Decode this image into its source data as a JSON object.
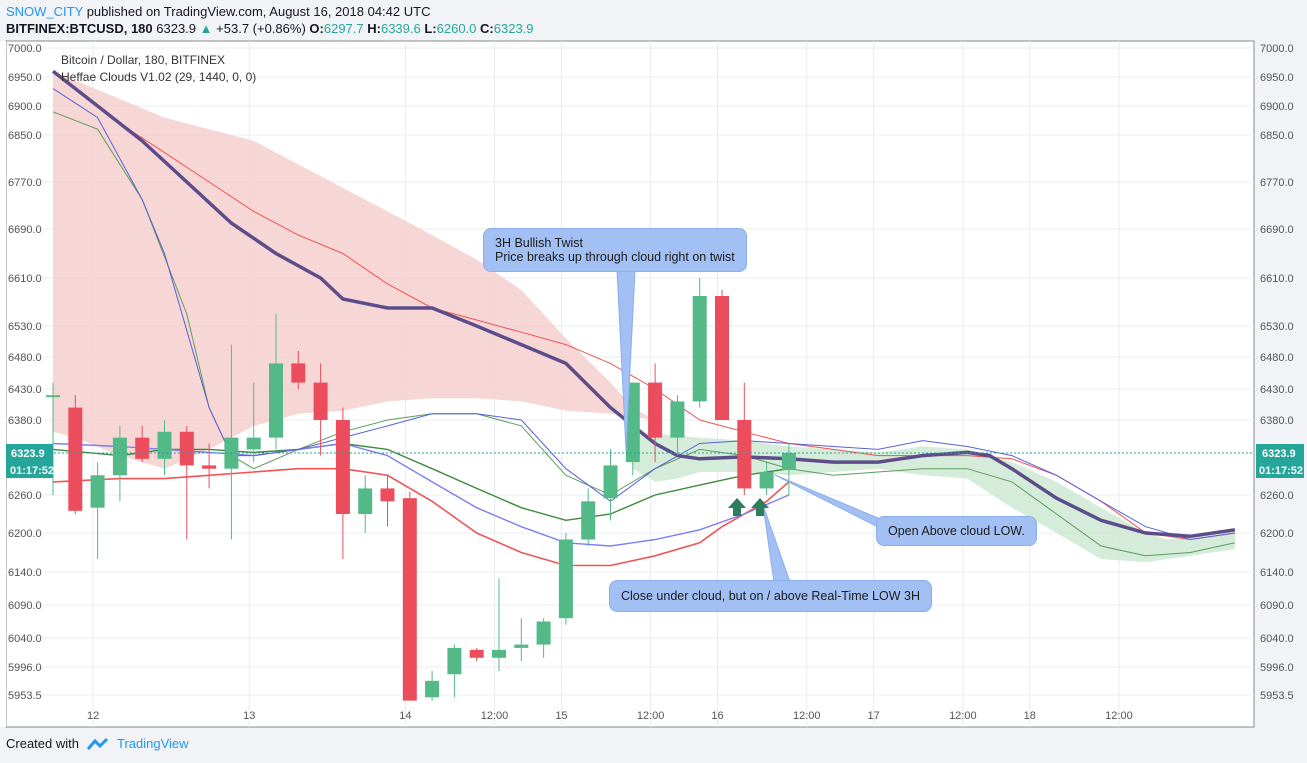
{
  "header": {
    "author": "SNOW_CITY",
    "published": "published on TradingView.com, August 16, 2018 04:42 UTC",
    "symbol": "BITFINEX:BTCUSD, 180",
    "last": "6323.9",
    "change": "+53.7 (+0.86%)",
    "o_label": "O:",
    "o": "6297.7",
    "h_label": "H:",
    "h": "6339.6",
    "l_label": "L:",
    "l": "6260.0",
    "c_label": "C:",
    "c": "6323.9"
  },
  "legend": {
    "line1": "Bitcoin / Dollar, 180, BITFINEX",
    "line2": "Heffae Clouds V1.02 (29, 1440, 0, 0)"
  },
  "footer": {
    "created": "Created with",
    "brand": "TradingView"
  },
  "price_tag": {
    "value": "6323.9",
    "countdown": "01:17:52"
  },
  "annotations": {
    "twist_line1": "3H Bullish Twist",
    "twist_line2": "Price breaks up through cloud right on twist",
    "open_above": "Open Above cloud LOW.",
    "close_under": "Close under cloud, but on / above Real-Time LOW 3H"
  },
  "colors": {
    "up": "#26a69a",
    "down": "#ef5350",
    "bull_candle": "#53b987",
    "bear_candle": "#eb4d5c",
    "cloud_bear": "#f6cfcf",
    "cloud_bull": "#cfe9d3",
    "main_line": "#5c4d8a",
    "callout": "#a2c0f3",
    "arrow": "#2e7d5b"
  },
  "chart_data": {
    "type": "candlestick",
    "y_ticks": [
      7000.0,
      6950.0,
      6900.0,
      6850.0,
      6770.0,
      6690.0,
      6610.0,
      6530.0,
      6480.0,
      6430.0,
      6380.0,
      6323.9,
      6260.0,
      6200.0,
      6140.0,
      6090.0,
      6040.0,
      5996.0,
      5953.5
    ],
    "y_tick_labels": [
      "7000.0",
      "6950.0",
      "6900.0",
      "6850.0",
      "6770.0",
      "6690.0",
      "6610.0",
      "6530.0",
      "6480.0",
      "6430.0",
      "6380.0",
      "6323.9",
      "6260.0",
      "6200.0",
      "6140.0",
      "6090.0",
      "6040.0",
      "5996.0",
      "5953.5"
    ],
    "x_tick_labels": [
      "12",
      "13",
      "14",
      "12:00",
      "15",
      "12:00",
      "16",
      "12:00",
      "17",
      "12:00",
      "18",
      "12:00"
    ],
    "x_tick_bars": [
      1.8,
      8.8,
      15.8,
      19.8,
      22.8,
      26.8,
      29.8,
      33.8,
      36.8,
      40.8,
      43.8,
      47.8
    ],
    "candles": [
      {
        "o": 6420,
        "h": 6440,
        "l": 6260,
        "c": 6420
      },
      {
        "o": 6400,
        "h": 6420,
        "l": 6230,
        "c": 6235
      },
      {
        "o": 6240,
        "h": 6310,
        "l": 6160,
        "c": 6290
      },
      {
        "o": 6290,
        "h": 6370,
        "l": 6250,
        "c": 6350
      },
      {
        "o": 6350,
        "h": 6370,
        "l": 6310,
        "c": 6315
      },
      {
        "o": 6315,
        "h": 6380,
        "l": 6290,
        "c": 6360
      },
      {
        "o": 6360,
        "h": 6370,
        "l": 6190,
        "c": 6305
      },
      {
        "o": 6305,
        "h": 6340,
        "l": 6270,
        "c": 6300
      },
      {
        "o": 6300,
        "h": 6500,
        "l": 6190,
        "c": 6350
      },
      {
        "o": 6330,
        "h": 6440,
        "l": 6310,
        "c": 6350
      },
      {
        "o": 6350,
        "h": 6550,
        "l": 6330,
        "c": 6470
      },
      {
        "o": 6470,
        "h": 6490,
        "l": 6430,
        "c": 6440
      },
      {
        "o": 6440,
        "h": 6470,
        "l": 6320,
        "c": 6380
      },
      {
        "o": 6380,
        "h": 6400,
        "l": 6160,
        "c": 6230
      },
      {
        "o": 6230,
        "h": 6290,
        "l": 6200,
        "c": 6270
      },
      {
        "o": 6270,
        "h": 6290,
        "l": 6210,
        "c": 6250
      },
      {
        "o": 6255,
        "h": 6265,
        "l": 5945,
        "c": 5945
      },
      {
        "o": 5950,
        "h": 5990,
        "l": 5945,
        "c": 5975
      },
      {
        "o": 5985,
        "h": 6030,
        "l": 5950,
        "c": 6025
      },
      {
        "o": 6022,
        "h": 6025,
        "l": 6005,
        "c": 6010
      },
      {
        "o": 6010,
        "h": 6130,
        "l": 5990,
        "c": 6022
      },
      {
        "o": 6025,
        "h": 6070,
        "l": 6005,
        "c": 6030
      },
      {
        "o": 6030,
        "h": 6070,
        "l": 6010,
        "c": 6065
      },
      {
        "o": 6070,
        "h": 6200,
        "l": 6060,
        "c": 6190
      },
      {
        "o": 6190,
        "h": 6270,
        "l": 6180,
        "c": 6250
      },
      {
        "o": 6255,
        "h": 6330,
        "l": 6220,
        "c": 6305
      },
      {
        "o": 6310,
        "h": 6440,
        "l": 6290,
        "c": 6440
      },
      {
        "o": 6440,
        "h": 6470,
        "l": 6310,
        "c": 6350
      },
      {
        "o": 6350,
        "h": 6420,
        "l": 6320,
        "c": 6410
      },
      {
        "o": 6410,
        "h": 6610,
        "l": 6400,
        "c": 6580
      },
      {
        "o": 6580,
        "h": 6590,
        "l": 6380,
        "c": 6380
      },
      {
        "o": 6380,
        "h": 6440,
        "l": 6260,
        "c": 6270
      },
      {
        "o": 6270,
        "h": 6310,
        "l": 6260,
        "c": 6295
      },
      {
        "o": 6298,
        "h": 6340,
        "l": 6260,
        "c": 6324
      }
    ],
    "current_price": 6323.9
  }
}
